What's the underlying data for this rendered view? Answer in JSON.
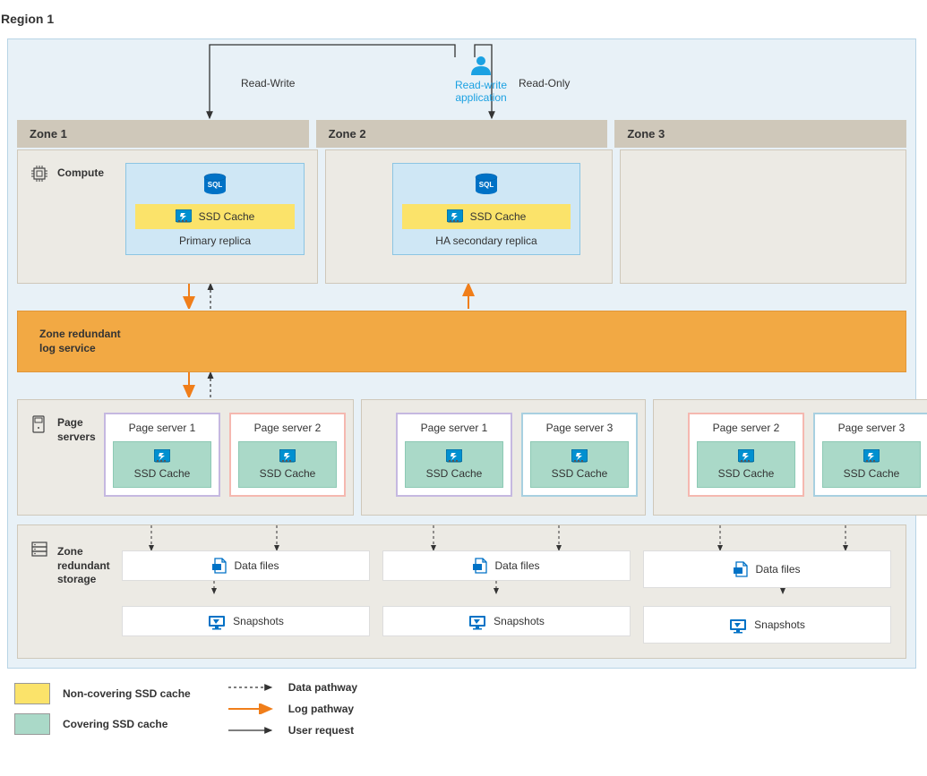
{
  "region": {
    "title": "Region 1"
  },
  "application": {
    "label": "Read-write\napplication",
    "left_conn": "Read-Write",
    "right_conn": "Read-Only"
  },
  "zones": [
    {
      "title": "Zone 1"
    },
    {
      "title": "Zone 2"
    },
    {
      "title": "Zone 3"
    }
  ],
  "compute": {
    "section": "Compute",
    "ssd_label": "SSD Cache",
    "replicas": [
      {
        "name": "Primary replica"
      },
      {
        "name": "HA secondary replica"
      }
    ]
  },
  "log_service": {
    "label": "Zone redundant\nlog service"
  },
  "page_servers": {
    "section": "Page\nservers",
    "ssd_label": "SSD Cache",
    "z1": [
      {
        "n": "Page server 1",
        "cls": "ps1"
      },
      {
        "n": "Page server 2",
        "cls": "ps2"
      }
    ],
    "z2": [
      {
        "n": "Page server 1",
        "cls": "ps1"
      },
      {
        "n": "Page server 3",
        "cls": "ps3"
      }
    ],
    "z3": [
      {
        "n": "Page server 2",
        "cls": "ps2"
      },
      {
        "n": "Page server 3",
        "cls": "ps3"
      }
    ]
  },
  "storage": {
    "section": "Zone\nredundant\nstorage",
    "data_files": "Data files",
    "snapshots": "Snapshots"
  },
  "legend": {
    "non_covering": "Non-covering SSD cache",
    "covering": "Covering SSD cache",
    "data_pathway": "Data pathway",
    "log_pathway": "Log pathway",
    "user_request": "User request"
  },
  "colors": {
    "region_bg": "#e8f1f7",
    "zone_header": "#cfc8ba",
    "band_bg": "#eceae4",
    "compute_box": "#cfe7f5",
    "ssd_yellow": "#fbe36a",
    "ssd_green": "#aad9c8",
    "log_orange": "#f2a944",
    "ps1_border": "#c5b8e0",
    "ps2_border": "#f5b8b0",
    "ps3_border": "#a8d0e0",
    "arrow_orange": "#f07e1a",
    "azure_blue": "#1ba1e2",
    "sql_blue": "#0072c6"
  }
}
